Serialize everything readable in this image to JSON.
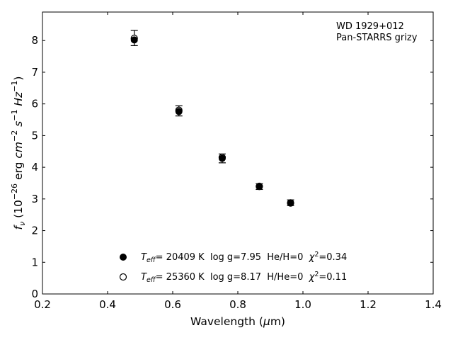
{
  "chart_data": {
    "type": "scatter",
    "xlabel": "Wavelength (μm)",
    "ylabel": "f_ν (10^-26 erg cm^-2 s^-1 Hz^-1)",
    "xlim": [
      0.2,
      1.4
    ],
    "ylim": [
      0,
      8.9
    ],
    "xticks": [
      "0.2",
      "0.4",
      "0.6",
      "0.8",
      "1.0",
      "1.2",
      "1.4"
    ],
    "yticks": [
      "0",
      "1",
      "2",
      "3",
      "4",
      "5",
      "6",
      "7",
      "8"
    ],
    "grid": false,
    "annotation": [
      "WD 1929+012",
      "Pan-STARRS grizy"
    ],
    "series": [
      {
        "name": "Teff= 20409 K  log g=7.95  He/H=0  χ2=0.34",
        "marker": "filled-circle",
        "x": [
          0.482,
          0.619,
          0.752,
          0.866,
          0.962
        ],
        "y": [
          8.02,
          5.76,
          4.28,
          3.39,
          2.88
        ]
      },
      {
        "name": "Teff= 25360 K  log g=8.17  H/He=0  χ2=0.11",
        "marker": "open-circle",
        "x": [
          0.482,
          0.619,
          0.752,
          0.866,
          0.962
        ],
        "y": [
          8.07,
          5.8,
          4.31,
          3.4,
          2.87
        ]
      }
    ],
    "observed": {
      "x": [
        0.482,
        0.619,
        0.752,
        0.866,
        0.962
      ],
      "y": [
        8.08,
        5.78,
        4.28,
        3.39,
        2.88
      ],
      "yerr": [
        0.24,
        0.16,
        0.14,
        0.09,
        0.09
      ]
    },
    "legend": {
      "placement": "lower-center",
      "entries": [
        {
          "marker": "filled-circle",
          "teff": "= 20409 K",
          "rest": "  log g=7.95  He/H=0  ",
          "chi": "=0.34"
        },
        {
          "marker": "open-circle",
          "teff": "= 25360 K",
          "rest": "  log g=8.17  H/He=0  ",
          "chi": "=0.11"
        }
      ]
    }
  }
}
